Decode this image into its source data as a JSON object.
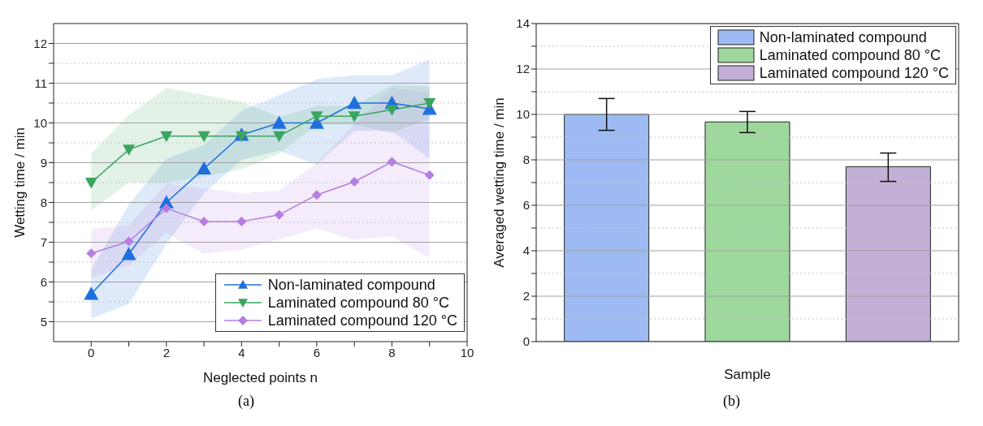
{
  "chart_data": [
    {
      "type": "line",
      "xlabel": "Neglected points n",
      "ylabel": "Wetting time / min",
      "x": [
        0,
        1,
        2,
        3,
        4,
        5,
        6,
        7,
        8,
        9
      ],
      "xlim": [
        -1,
        10
      ],
      "xticks": [
        0,
        {
          "value": 1,
          "label": null
        },
        2,
        {
          "value": 3,
          "label": null
        },
        4,
        {
          "value": 5,
          "label": null
        },
        6,
        {
          "value": 7,
          "label": null
        },
        8,
        {
          "value": 9,
          "label": null
        },
        10
      ],
      "ylim": [
        4.5,
        12.5
      ],
      "yticks": [
        5,
        {
          "value": 5.5,
          "label": null
        },
        6,
        {
          "value": 6.5,
          "label": null
        },
        7,
        {
          "value": 7.5,
          "label": null
        },
        8,
        {
          "value": 8.5,
          "label": null
        },
        9,
        {
          "value": 9.5,
          "label": null
        },
        10,
        {
          "value": 10.5,
          "label": null
        },
        11,
        {
          "value": 11.5,
          "label": null
        },
        12
      ],
      "grid": "y",
      "legend": "bottom right",
      "annotations": [
        "(a)"
      ],
      "series": [
        {
          "name": "Non-laminated compound",
          "color": "#1f6fdf",
          "marker": "triangle",
          "values": [
            5.7,
            6.7,
            8.0,
            8.85,
            9.7,
            10.0,
            10.0,
            10.5,
            10.5,
            10.35
          ],
          "lower": [
            5.08,
            5.45,
            6.95,
            8.23,
            9.07,
            9.3,
            8.95,
            9.8,
            9.8,
            9.1
          ],
          "upper": [
            6.3,
            7.95,
            9.1,
            9.45,
            10.3,
            10.7,
            11.1,
            11.2,
            11.2,
            11.6
          ]
        },
        {
          "name": "Laminated compound 80 °C",
          "color": "#3aa55f",
          "marker": "triangle-down",
          "values": [
            8.5,
            9.33,
            9.67,
            9.67,
            9.67,
            9.67,
            10.17,
            10.17,
            10.33,
            10.5
          ],
          "lower": [
            7.8,
            8.5,
            8.5,
            8.65,
            8.83,
            9.23,
            9.95,
            9.95,
            9.75,
            10.1
          ],
          "upper": [
            9.23,
            10.2,
            10.88,
            10.7,
            10.53,
            10.15,
            10.43,
            10.43,
            10.95,
            10.92
          ]
        },
        {
          "name": "Laminated compound 120 °C",
          "color": "#b57ee0",
          "marker": "diamond",
          "values": [
            6.72,
            7.02,
            7.85,
            7.52,
            7.52,
            7.69,
            8.19,
            8.52,
            9.02,
            8.69
          ],
          "lower": [
            6.1,
            6.42,
            7.23,
            6.71,
            6.81,
            7.07,
            7.34,
            7.06,
            7.15,
            6.6
          ],
          "upper": [
            7.34,
            7.43,
            8.47,
            8.36,
            8.23,
            8.3,
            8.98,
            9.97,
            10.88,
            10.76
          ]
        }
      ]
    },
    {
      "type": "bar",
      "xlabel": "Sample",
      "ylabel": "Averaged wetting time / min",
      "categories": [
        null,
        null,
        null
      ],
      "ylim": [
        0,
        14
      ],
      "yticks": [
        0,
        {
          "value": 1,
          "label": null
        },
        2,
        {
          "value": 3,
          "label": null
        },
        4,
        {
          "value": 5,
          "label": null
        },
        6,
        {
          "value": 7,
          "label": null
        },
        8,
        {
          "value": 9,
          "label": null
        },
        10,
        {
          "value": 11,
          "label": null
        },
        12,
        {
          "value": 13,
          "label": null
        },
        14
      ],
      "grid": "y",
      "legend": "top right",
      "annotations": [
        "(b)"
      ],
      "series": [
        {
          "name": "Non-laminated compound",
          "color": "#9dbbf2",
          "values": [
            10.0,
            null,
            null
          ],
          "errors": [
            [
              9.3,
              10.7
            ],
            null,
            null
          ]
        },
        {
          "name": "Laminated compound 80 °C",
          "color": "#9ed89c",
          "values": [
            null,
            9.67,
            null
          ],
          "errors": [
            null,
            [
              9.2,
              10.13
            ],
            null
          ]
        },
        {
          "name": "Laminated compound 120 °C",
          "color": "#c3b0d6",
          "values": [
            null,
            null,
            7.7
          ],
          "errors": [
            null,
            null,
            [
              7.05,
              8.3
            ]
          ]
        }
      ]
    }
  ]
}
